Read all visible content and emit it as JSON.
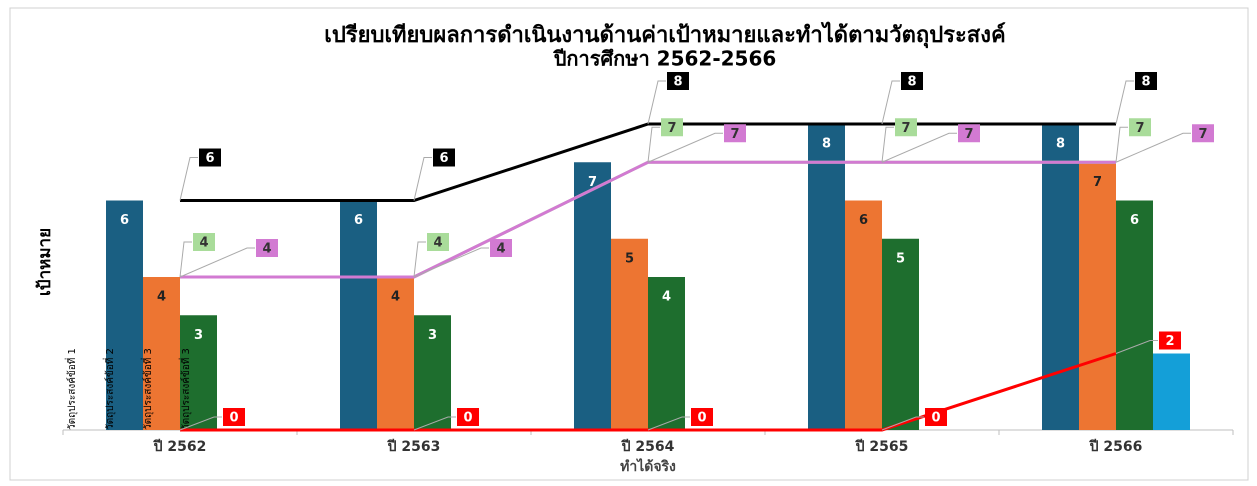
{
  "chart_data": {
    "type": "bar",
    "title": "เปรียบเทียบผลการดำเนินงานด้านค่าเป้าหมายและทำได้ตามวัตถุประสงค์",
    "subtitle": "ปีการศึกษา 2562-2566",
    "y_label": "เป้าหมาย",
    "x_label": "ทำได้จริง",
    "categories": [
      "ปี 2562",
      "ปี 2563",
      "ปี 2564",
      "ปี 2565",
      "ปี 2566"
    ],
    "ylim": [
      0,
      8
    ],
    "series": [
      {
        "type": "bar",
        "name": "วัตถุประสงค์ข้อที่ 1",
        "color": "#1a5f82",
        "label_color": "#ffffff",
        "values": [
          6,
          6,
          7,
          8,
          8
        ]
      },
      {
        "type": "bar",
        "name": "วัตถุประสงค์ข้อที่ 2",
        "color": "#ed7532",
        "label_color": "#222222",
        "values": [
          4,
          4,
          5,
          6,
          7
        ]
      },
      {
        "type": "bar",
        "name": "วัตถุประสงค์ข้อที่ 3",
        "color": "#1e6e2e",
        "label_color": "#ffffff",
        "values": [
          3,
          3,
          4,
          5,
          6
        ]
      },
      {
        "type": "bar",
        "name": "วัตถุประสงค์ข้อที่ 3",
        "color": "#149fd8",
        "values": [
          0,
          0,
          0,
          0,
          2
        ]
      },
      {
        "type": "line",
        "color": "#000000",
        "label_color": "#ffffff",
        "values": [
          6,
          6,
          8,
          8,
          8
        ]
      },
      {
        "type": "line",
        "color": "#a9dc9a",
        "label_color": "#333333",
        "values": [
          4,
          4,
          7,
          7,
          7
        ]
      },
      {
        "type": "line",
        "color": "#d27ad2",
        "label_color": "#333333",
        "values": [
          4,
          4,
          7,
          7,
          7
        ]
      },
      {
        "type": "line",
        "color": "#ff0000",
        "label_color": "#ffffff",
        "values": [
          0,
          0,
          0,
          0,
          2
        ]
      }
    ]
  }
}
